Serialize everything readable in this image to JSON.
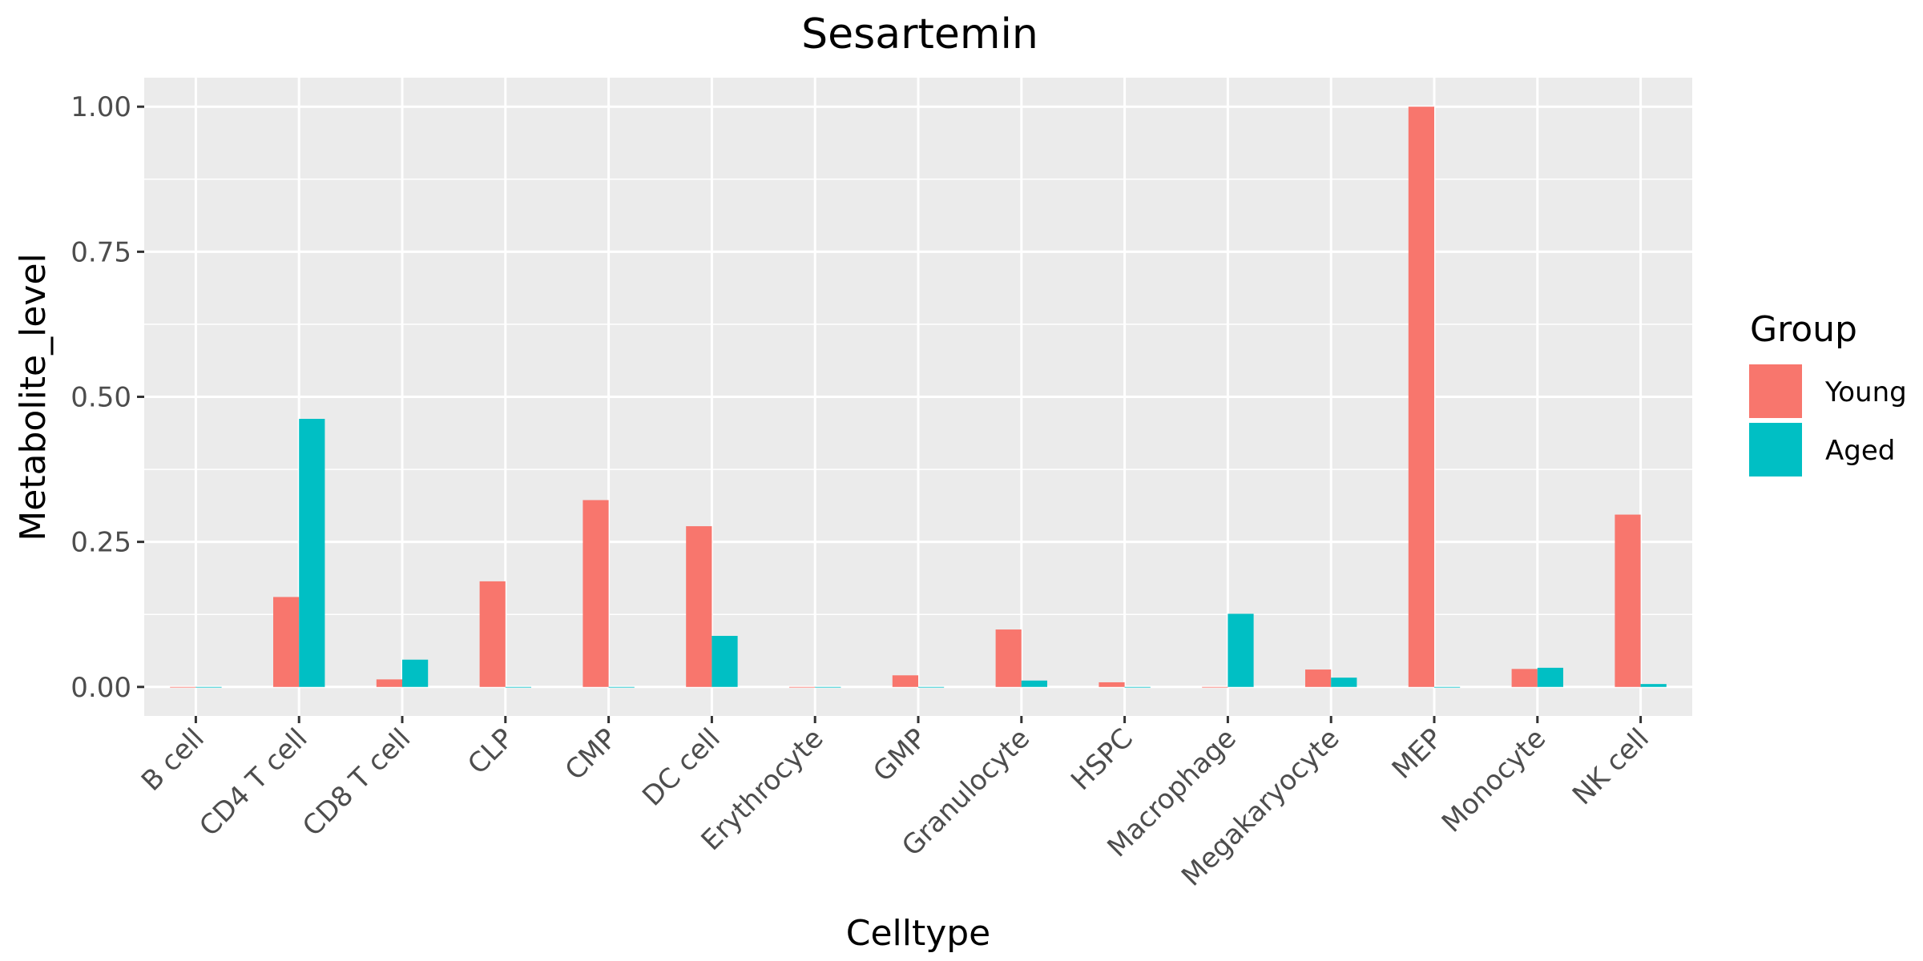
{
  "chart_data": {
    "type": "bar",
    "title": "Sesartemin",
    "xlabel": "Celltype",
    "ylabel": "Metabolite_level",
    "ylim": [
      -0.05,
      1.05
    ],
    "yticks": [
      0.0,
      0.25,
      0.5,
      0.75,
      1.0
    ],
    "ytick_labels": [
      "0.00",
      "0.25",
      "0.50",
      "0.75",
      "1.00"
    ],
    "categories": [
      "B cell",
      "CD4 T cell",
      "CD8 T cell",
      "CLP",
      "CMP",
      "DC cell",
      "Erythrocyte",
      "GMP",
      "Granulocyte",
      "HSPC",
      "Macrophage",
      "Megakaryocyte",
      "MEP",
      "Monocyte",
      "NK cell"
    ],
    "series": [
      {
        "name": "Young",
        "color": "#F8766D",
        "values": [
          0.0,
          0.155,
          0.013,
          0.182,
          0.322,
          0.277,
          0.0,
          0.02,
          0.099,
          0.008,
          0.0,
          0.03,
          1.0,
          0.031,
          0.297
        ]
      },
      {
        "name": "Aged",
        "color": "#00BFC4",
        "values": [
          0.0,
          0.462,
          0.047,
          0.0,
          0.0,
          0.088,
          0.0,
          0.0,
          0.011,
          0.0,
          0.126,
          0.016,
          0.0,
          0.033,
          0.005
        ]
      }
    ],
    "legend": {
      "title": "Group",
      "position": "right"
    },
    "grid": true,
    "panel_background": "#EBEBEB"
  }
}
